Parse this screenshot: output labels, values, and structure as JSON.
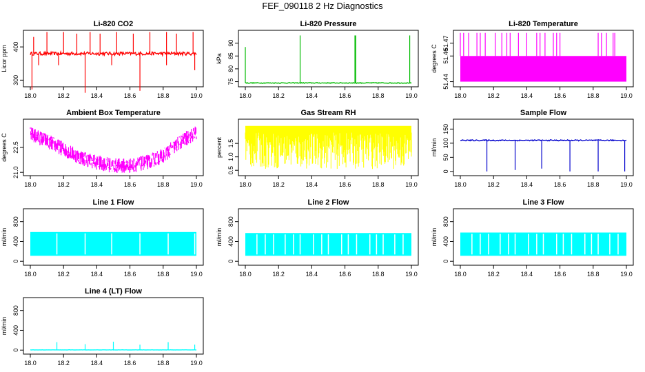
{
  "page": {
    "title": "FEF_090118  2 Hz Diagnostics"
  },
  "chart_data": [
    {
      "type": "line",
      "title": "Li-820 CO2",
      "xlabel": "",
      "ylabel": "Licor ppm",
      "color": "#ff0000",
      "xlim": [
        18.0,
        19.0
      ],
      "ylim": [
        280,
        450
      ],
      "xticks": [
        "18.0",
        "18.2",
        "18.4",
        "18.6",
        "18.8",
        "19.0"
      ],
      "yticks": [
        "300",
        "400"
      ],
      "series": [
        {
          "baseline": 380,
          "noise": 5,
          "x_range": [
            18.0,
            19.0
          ],
          "spikes_up": [
            [
              18.02,
              430
            ],
            [
              18.1,
              445
            ],
            [
              18.2,
              445
            ],
            [
              18.28,
              440
            ],
            [
              18.36,
              445
            ],
            [
              18.42,
              440
            ],
            [
              18.52,
              445
            ],
            [
              18.62,
              440
            ],
            [
              18.72,
              445
            ],
            [
              18.82,
              445
            ],
            [
              18.88,
              440
            ],
            [
              18.98,
              445
            ]
          ],
          "spikes_down": [
            [
              18.01,
              272
            ],
            [
              18.05,
              345
            ],
            [
              18.17,
              345
            ],
            [
              18.33,
              262
            ],
            [
              18.49,
              345
            ],
            [
              18.66,
              268
            ],
            [
              18.82,
              345
            ],
            [
              18.99,
              330
            ]
          ]
        }
      ]
    },
    {
      "type": "line",
      "title": "Li-820 Pressure",
      "xlabel": "",
      "ylabel": "kPa",
      "color": "#00bb00",
      "xlim": [
        18.0,
        19.0
      ],
      "ylim": [
        73,
        95
      ],
      "xticks": [
        "18.0",
        "18.2",
        "18.4",
        "18.6",
        "18.8",
        "19.0"
      ],
      "yticks": [
        "75",
        "80",
        "85",
        "90"
      ],
      "series": [
        {
          "baseline": 74.5,
          "noise": 0.15,
          "x_range": [
            18.0,
            19.0
          ],
          "spikes_up": [
            [
              18.0,
              88.5
            ],
            [
              18.33,
              93
            ],
            [
              18.66,
              93
            ],
            [
              18.665,
              93
            ],
            [
              18.99,
              93
            ]
          ],
          "spikes_down": []
        }
      ]
    },
    {
      "type": "line",
      "title": "Li-820 Temperature",
      "xlabel": "",
      "ylabel": "degrees C",
      "color": "#ff00ff",
      "xlim": [
        18.0,
        19.0
      ],
      "ylim": [
        51.436,
        51.48
      ],
      "xticks": [
        "18.0",
        "18.2",
        "18.4",
        "18.6",
        "18.8",
        "19.0"
      ],
      "yticks": [
        "51.44",
        "51.46",
        "51.47"
      ],
      "series": [
        {
          "band": [
            51.44,
            51.46
          ],
          "x_range": [
            18.0,
            19.0
          ],
          "spikes_up": [
            [
              18.0,
              51.478
            ],
            [
              18.02,
              51.478
            ],
            [
              18.05,
              51.478
            ],
            [
              18.1,
              51.478
            ],
            [
              18.12,
              51.478
            ],
            [
              18.15,
              51.478
            ],
            [
              18.21,
              51.478
            ],
            [
              18.25,
              51.478
            ],
            [
              18.28,
              51.478
            ],
            [
              18.3,
              51.478
            ],
            [
              18.35,
              51.478
            ],
            [
              18.4,
              51.478
            ],
            [
              18.46,
              51.478
            ],
            [
              18.48,
              51.478
            ],
            [
              18.51,
              51.478
            ],
            [
              18.56,
              51.478
            ],
            [
              18.58,
              51.478
            ],
            [
              18.6,
              51.478
            ],
            [
              18.83,
              51.478
            ],
            [
              18.85,
              51.478
            ],
            [
              18.88,
              51.478
            ],
            [
              18.92,
              51.478
            ],
            [
              18.93,
              51.478
            ]
          ],
          "spikes_down": []
        }
      ]
    },
    {
      "type": "line",
      "title": "Ambient Box Temperature",
      "xlabel": "",
      "ylabel": "degrees C",
      "color": "#ff00ff",
      "xlim": [
        18.0,
        19.0
      ],
      "ylim": [
        20.8,
        24.2
      ],
      "xticks": [
        "18.0",
        "18.2",
        "18.4",
        "18.6",
        "18.8",
        "19.0"
      ],
      "yticks": [
        "21.0",
        "22.5"
      ],
      "series": [
        {
          "x": [
            18.0,
            18.1,
            18.2,
            18.3,
            18.4,
            18.5,
            18.6,
            18.7,
            18.8,
            18.9,
            19.0
          ],
          "y": [
            23.3,
            22.9,
            22.4,
            21.9,
            21.6,
            21.4,
            21.4,
            21.6,
            22.0,
            22.8,
            23.4
          ],
          "noise": 0.45
        }
      ]
    },
    {
      "type": "line",
      "title": "Gas Stream RH",
      "xlabel": "",
      "ylabel": "percent",
      "color": "#ffff00",
      "xlim": [
        18.0,
        19.0
      ],
      "ylim": [
        0.3,
        2.4
      ],
      "xticks": [
        "18.0",
        "18.2",
        "18.4",
        "18.6",
        "18.8",
        "19.0"
      ],
      "yticks": [
        "0.5",
        "1.0",
        "1.5"
      ],
      "series": [
        {
          "band": [
            1.9,
            2.15
          ],
          "min_level": 0.55,
          "x_range": [
            18.0,
            19.0
          ]
        }
      ]
    },
    {
      "type": "line",
      "title": "Sample Flow",
      "xlabel": "",
      "ylabel": "ml/min",
      "color": "#0000cc",
      "xlim": [
        18.0,
        19.0
      ],
      "ylim": [
        -15,
        185
      ],
      "xticks": [
        "18.0",
        "18.2",
        "18.4",
        "18.6",
        "18.8",
        "19.0"
      ],
      "yticks": [
        "0",
        "50",
        "100",
        "150"
      ],
      "series": [
        {
          "baseline": 110,
          "noise": 2,
          "x_range": [
            18.0,
            19.0
          ],
          "spikes_up": [],
          "spikes_down": [
            [
              18.16,
              0
            ],
            [
              18.33,
              5
            ],
            [
              18.49,
              10
            ],
            [
              18.66,
              0
            ],
            [
              18.83,
              0
            ],
            [
              18.99,
              0
            ]
          ]
        }
      ]
    },
    {
      "type": "line",
      "title": "Line 1 Flow",
      "xlabel": "",
      "ylabel": "ml/min",
      "color": "#00ffff",
      "xlim": [
        18.0,
        19.0
      ],
      "ylim": [
        -80,
        1060
      ],
      "xticks": [
        "18.0",
        "18.2",
        "18.4",
        "18.6",
        "18.8",
        "19.0"
      ],
      "yticks": [
        "0",
        "400",
        "800"
      ],
      "series": [
        {
          "band": [
            110,
            590
          ],
          "gaps": [
            18.16,
            18.33,
            18.49,
            18.66,
            18.83,
            18.99
          ],
          "x_range": [
            18.0,
            19.0
          ]
        }
      ]
    },
    {
      "type": "line",
      "title": "Line 2 Flow",
      "xlabel": "",
      "ylabel": "ml/min",
      "color": "#00ffff",
      "xlim": [
        18.0,
        19.0
      ],
      "ylim": [
        -80,
        1060
      ],
      "xticks": [
        "18.0",
        "18.2",
        "18.4",
        "18.6",
        "18.8",
        "19.0"
      ],
      "yticks": [
        "0",
        "400",
        "800"
      ],
      "series": [
        {
          "band": [
            110,
            570
          ],
          "gaps": [
            18.07,
            18.12,
            18.17,
            18.24,
            18.29,
            18.33,
            18.41,
            18.46,
            18.5,
            18.58,
            18.62,
            18.67,
            18.75,
            18.79,
            18.83,
            18.9,
            18.95
          ],
          "x_range": [
            18.0,
            19.0
          ]
        }
      ]
    },
    {
      "type": "line",
      "title": "Line 3 Flow",
      "xlabel": "",
      "ylabel": "ml/min",
      "color": "#00ffff",
      "xlim": [
        18.0,
        19.0
      ],
      "ylim": [
        -80,
        1060
      ],
      "xticks": [
        "18.0",
        "18.2",
        "18.4",
        "18.6",
        "18.8",
        "19.0"
      ],
      "yticks": [
        "0",
        "400",
        "800"
      ],
      "series": [
        {
          "band": [
            110,
            580
          ],
          "gaps": [
            18.07,
            18.12,
            18.17,
            18.24,
            18.29,
            18.33,
            18.41,
            18.46,
            18.5,
            18.58,
            18.62,
            18.67,
            18.75,
            18.79,
            18.83,
            18.9,
            18.95
          ],
          "x_range": [
            18.0,
            19.0
          ]
        }
      ]
    },
    {
      "type": "line",
      "title": "Line 4 (LT) Flow",
      "xlabel": "",
      "ylabel": "ml/min",
      "color": "#00ffff",
      "xlim": [
        18.0,
        19.0
      ],
      "ylim": [
        -80,
        1060
      ],
      "xticks": [
        "18.0",
        "18.2",
        "18.4",
        "18.6",
        "18.8",
        "19.0"
      ],
      "yticks": [
        "0",
        "400",
        "800"
      ],
      "series": [
        {
          "baseline": 5,
          "noise": 2,
          "x_range": [
            18.0,
            19.0
          ],
          "spikes_up": [
            [
              18.16,
              160
            ],
            [
              18.33,
              120
            ],
            [
              18.5,
              170
            ],
            [
              18.66,
              110
            ],
            [
              18.83,
              160
            ],
            [
              18.99,
              110
            ]
          ],
          "spikes_down": []
        }
      ]
    }
  ]
}
